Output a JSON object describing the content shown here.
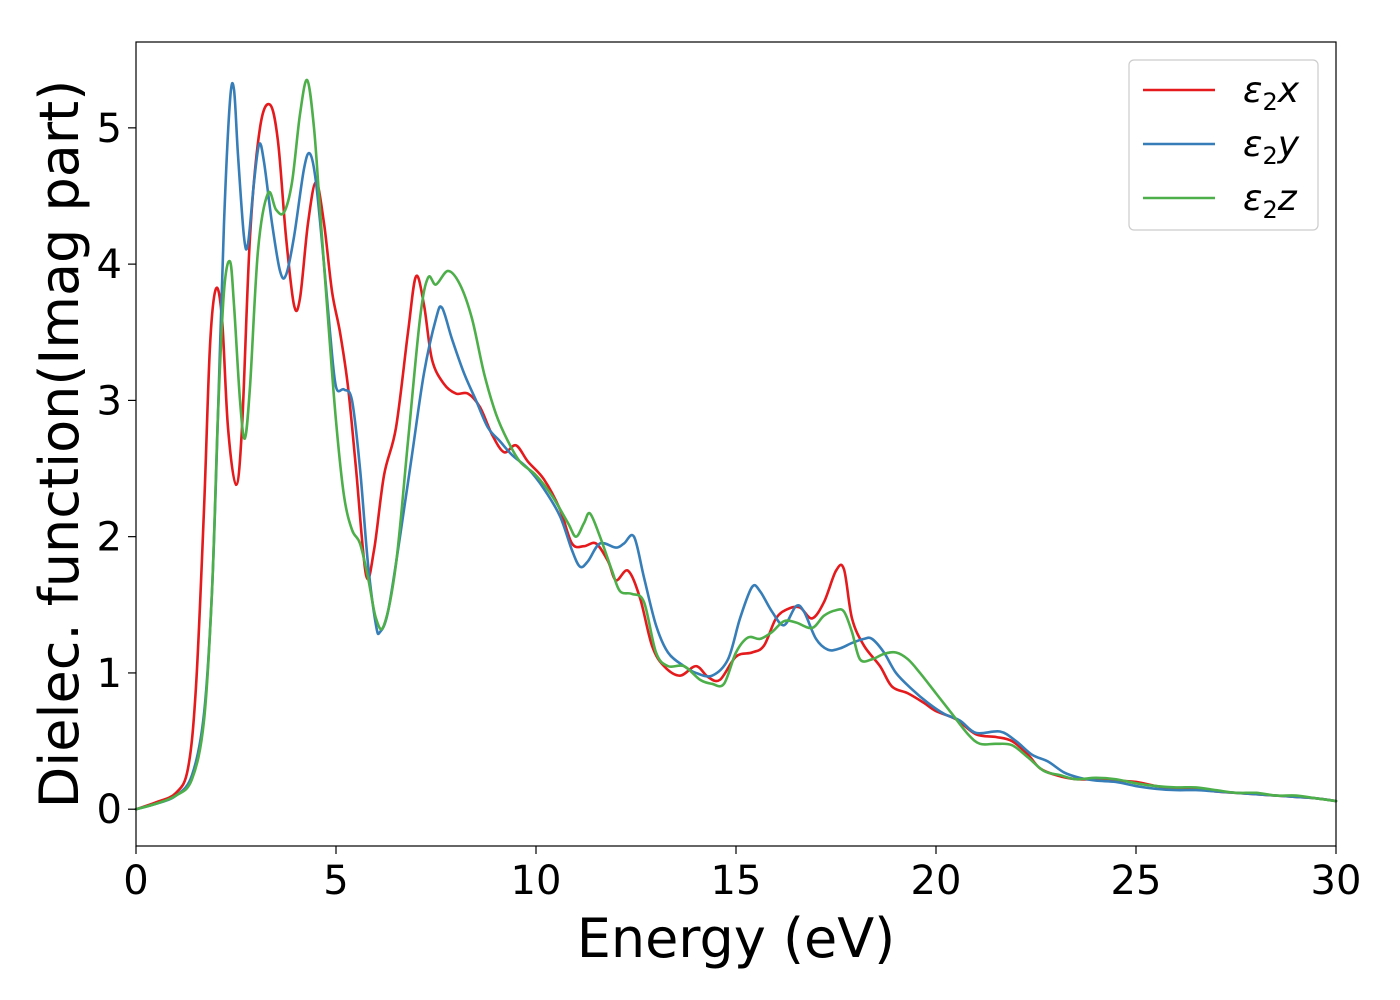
{
  "chart_data": {
    "type": "line",
    "xlabel": "Energy (eV)",
    "ylabel": "Dielec. function(Imag part)",
    "xlim": [
      0,
      30
    ],
    "ylim": [
      -0.27,
      5.63
    ],
    "xticks": [
      0,
      5,
      10,
      15,
      20,
      25,
      30
    ],
    "yticks": [
      0,
      1,
      2,
      3,
      4,
      5
    ],
    "grid": false,
    "legend_position": "top-right",
    "series": [
      {
        "name": "ε2x",
        "legend": {
          "sym": "ε",
          "sub": "2",
          "var": "x"
        },
        "color": "#e41a1c",
        "points": [
          [
            0,
            0
          ],
          [
            0.5,
            0.05
          ],
          [
            1,
            0.12
          ],
          [
            1.3,
            0.3
          ],
          [
            1.5,
            0.9
          ],
          [
            1.7,
            2.2
          ],
          [
            1.85,
            3.4
          ],
          [
            2.0,
            3.82
          ],
          [
            2.15,
            3.6
          ],
          [
            2.3,
            2.8
          ],
          [
            2.5,
            2.38
          ],
          [
            2.65,
            2.8
          ],
          [
            2.85,
            4.2
          ],
          [
            3.1,
            5.0
          ],
          [
            3.35,
            5.17
          ],
          [
            3.55,
            4.9
          ],
          [
            3.75,
            4.2
          ],
          [
            3.95,
            3.7
          ],
          [
            4.1,
            3.75
          ],
          [
            4.3,
            4.3
          ],
          [
            4.5,
            4.6
          ],
          [
            4.7,
            4.3
          ],
          [
            4.9,
            3.8
          ],
          [
            5.1,
            3.5
          ],
          [
            5.3,
            3.1
          ],
          [
            5.5,
            2.5
          ],
          [
            5.75,
            1.72
          ],
          [
            5.95,
            1.9
          ],
          [
            6.2,
            2.45
          ],
          [
            6.5,
            2.8
          ],
          [
            6.8,
            3.5
          ],
          [
            7.0,
            3.91
          ],
          [
            7.2,
            3.7
          ],
          [
            7.4,
            3.3
          ],
          [
            7.7,
            3.12
          ],
          [
            8.0,
            3.05
          ],
          [
            8.3,
            3.05
          ],
          [
            8.6,
            2.95
          ],
          [
            8.9,
            2.75
          ],
          [
            9.2,
            2.62
          ],
          [
            9.5,
            2.67
          ],
          [
            9.8,
            2.55
          ],
          [
            10.2,
            2.42
          ],
          [
            10.6,
            2.2
          ],
          [
            10.9,
            1.95
          ],
          [
            11.2,
            1.93
          ],
          [
            11.5,
            1.95
          ],
          [
            11.8,
            1.82
          ],
          [
            12.0,
            1.68
          ],
          [
            12.3,
            1.75
          ],
          [
            12.6,
            1.55
          ],
          [
            12.9,
            1.2
          ],
          [
            13.2,
            1.05
          ],
          [
            13.6,
            0.98
          ],
          [
            14.0,
            1.05
          ],
          [
            14.3,
            0.97
          ],
          [
            14.6,
            0.95
          ],
          [
            15.0,
            1.12
          ],
          [
            15.4,
            1.15
          ],
          [
            15.7,
            1.2
          ],
          [
            16.0,
            1.4
          ],
          [
            16.3,
            1.47
          ],
          [
            16.6,
            1.48
          ],
          [
            16.9,
            1.4
          ],
          [
            17.2,
            1.52
          ],
          [
            17.5,
            1.75
          ],
          [
            17.7,
            1.76
          ],
          [
            17.9,
            1.4
          ],
          [
            18.2,
            1.2
          ],
          [
            18.6,
            1.05
          ],
          [
            18.9,
            0.9
          ],
          [
            19.3,
            0.85
          ],
          [
            19.7,
            0.78
          ],
          [
            20.0,
            0.72
          ],
          [
            20.5,
            0.66
          ],
          [
            21.0,
            0.55
          ],
          [
            21.5,
            0.53
          ],
          [
            21.9,
            0.5
          ],
          [
            22.3,
            0.4
          ],
          [
            22.6,
            0.3
          ],
          [
            23.0,
            0.25
          ],
          [
            23.5,
            0.22
          ],
          [
            24.0,
            0.22
          ],
          [
            24.5,
            0.21
          ],
          [
            25.0,
            0.2
          ],
          [
            25.5,
            0.17
          ],
          [
            26.0,
            0.15
          ],
          [
            26.5,
            0.15
          ],
          [
            27.0,
            0.13
          ],
          [
            27.5,
            0.12
          ],
          [
            28.0,
            0.11
          ],
          [
            28.5,
            0.1
          ],
          [
            29.0,
            0.09
          ],
          [
            29.5,
            0.08
          ],
          [
            30,
            0.06
          ]
        ]
      },
      {
        "name": "ε2y",
        "legend": {
          "sym": "ε",
          "sub": "2",
          "var": "y"
        },
        "color": "#377eb8",
        "points": [
          [
            0,
            0
          ],
          [
            0.5,
            0.04
          ],
          [
            1,
            0.1
          ],
          [
            1.4,
            0.25
          ],
          [
            1.7,
            0.7
          ],
          [
            1.9,
            1.6
          ],
          [
            2.05,
            2.9
          ],
          [
            2.2,
            4.3
          ],
          [
            2.35,
            5.2
          ],
          [
            2.45,
            5.28
          ],
          [
            2.55,
            4.8
          ],
          [
            2.7,
            4.2
          ],
          [
            2.8,
            4.15
          ],
          [
            2.95,
            4.6
          ],
          [
            3.08,
            4.88
          ],
          [
            3.2,
            4.75
          ],
          [
            3.4,
            4.3
          ],
          [
            3.6,
            3.95
          ],
          [
            3.75,
            3.92
          ],
          [
            3.95,
            4.2
          ],
          [
            4.2,
            4.7
          ],
          [
            4.35,
            4.81
          ],
          [
            4.5,
            4.6
          ],
          [
            4.7,
            4.0
          ],
          [
            4.85,
            3.5
          ],
          [
            5.0,
            3.1
          ],
          [
            5.2,
            3.08
          ],
          [
            5.4,
            3.0
          ],
          [
            5.6,
            2.5
          ],
          [
            5.8,
            1.8
          ],
          [
            6.0,
            1.35
          ],
          [
            6.1,
            1.3
          ],
          [
            6.3,
            1.45
          ],
          [
            6.6,
            2.0
          ],
          [
            6.9,
            2.6
          ],
          [
            7.2,
            3.2
          ],
          [
            7.5,
            3.6
          ],
          [
            7.65,
            3.68
          ],
          [
            7.9,
            3.45
          ],
          [
            8.2,
            3.2
          ],
          [
            8.5,
            3.0
          ],
          [
            8.8,
            2.8
          ],
          [
            9.1,
            2.7
          ],
          [
            9.4,
            2.6
          ],
          [
            9.8,
            2.5
          ],
          [
            10.2,
            2.35
          ],
          [
            10.6,
            2.15
          ],
          [
            10.9,
            1.9
          ],
          [
            11.1,
            1.78
          ],
          [
            11.3,
            1.82
          ],
          [
            11.6,
            1.95
          ],
          [
            12.0,
            1.92
          ],
          [
            12.2,
            1.95
          ],
          [
            12.45,
            2.0
          ],
          [
            12.7,
            1.7
          ],
          [
            13.0,
            1.35
          ],
          [
            13.3,
            1.15
          ],
          [
            13.7,
            1.05
          ],
          [
            14.0,
            1.0
          ],
          [
            14.4,
            0.98
          ],
          [
            14.8,
            1.1
          ],
          [
            15.1,
            1.4
          ],
          [
            15.4,
            1.63
          ],
          [
            15.6,
            1.6
          ],
          [
            15.9,
            1.45
          ],
          [
            16.2,
            1.35
          ],
          [
            16.5,
            1.49
          ],
          [
            16.7,
            1.45
          ],
          [
            17.0,
            1.25
          ],
          [
            17.3,
            1.17
          ],
          [
            17.6,
            1.18
          ],
          [
            17.9,
            1.22
          ],
          [
            18.2,
            1.25
          ],
          [
            18.4,
            1.25
          ],
          [
            18.7,
            1.15
          ],
          [
            19.0,
            1.0
          ],
          [
            19.4,
            0.88
          ],
          [
            19.8,
            0.78
          ],
          [
            20.2,
            0.7
          ],
          [
            20.6,
            0.65
          ],
          [
            21.0,
            0.56
          ],
          [
            21.6,
            0.57
          ],
          [
            22.0,
            0.5
          ],
          [
            22.4,
            0.4
          ],
          [
            22.8,
            0.35
          ],
          [
            23.2,
            0.27
          ],
          [
            23.6,
            0.23
          ],
          [
            24.0,
            0.21
          ],
          [
            24.5,
            0.2
          ],
          [
            25.0,
            0.17
          ],
          [
            25.5,
            0.15
          ],
          [
            26.0,
            0.14
          ],
          [
            26.5,
            0.14
          ],
          [
            27.0,
            0.13
          ],
          [
            27.5,
            0.12
          ],
          [
            28.0,
            0.11
          ],
          [
            28.5,
            0.1
          ],
          [
            29.0,
            0.09
          ],
          [
            29.5,
            0.08
          ],
          [
            30,
            0.06
          ]
        ]
      },
      {
        "name": "ε2z",
        "legend": {
          "sym": "ε",
          "sub": "2",
          "var": "z"
        },
        "color": "#4daf4a",
        "points": [
          [
            0,
            0
          ],
          [
            0.5,
            0.04
          ],
          [
            1,
            0.1
          ],
          [
            1.4,
            0.22
          ],
          [
            1.7,
            0.65
          ],
          [
            1.9,
            1.6
          ],
          [
            2.05,
            2.9
          ],
          [
            2.2,
            3.8
          ],
          [
            2.35,
            4.02
          ],
          [
            2.45,
            3.7
          ],
          [
            2.6,
            3.0
          ],
          [
            2.72,
            2.72
          ],
          [
            2.85,
            3.1
          ],
          [
            3.05,
            4.1
          ],
          [
            3.3,
            4.52
          ],
          [
            3.5,
            4.4
          ],
          [
            3.7,
            4.38
          ],
          [
            3.9,
            4.6
          ],
          [
            4.1,
            5.1
          ],
          [
            4.28,
            5.35
          ],
          [
            4.45,
            5.0
          ],
          [
            4.6,
            4.4
          ],
          [
            4.8,
            3.6
          ],
          [
            5.0,
            2.85
          ],
          [
            5.2,
            2.3
          ],
          [
            5.4,
            2.05
          ],
          [
            5.6,
            1.95
          ],
          [
            5.8,
            1.7
          ],
          [
            6.0,
            1.4
          ],
          [
            6.2,
            1.35
          ],
          [
            6.5,
            1.8
          ],
          [
            6.8,
            2.7
          ],
          [
            7.1,
            3.6
          ],
          [
            7.3,
            3.9
          ],
          [
            7.5,
            3.85
          ],
          [
            7.8,
            3.95
          ],
          [
            8.1,
            3.85
          ],
          [
            8.4,
            3.6
          ],
          [
            8.7,
            3.2
          ],
          [
            9.0,
            2.9
          ],
          [
            9.3,
            2.7
          ],
          [
            9.6,
            2.55
          ],
          [
            10.0,
            2.45
          ],
          [
            10.4,
            2.3
          ],
          [
            10.8,
            2.1
          ],
          [
            11.0,
            2.0
          ],
          [
            11.2,
            2.1
          ],
          [
            11.35,
            2.17
          ],
          [
            11.6,
            2.0
          ],
          [
            11.9,
            1.75
          ],
          [
            12.1,
            1.6
          ],
          [
            12.4,
            1.58
          ],
          [
            12.7,
            1.52
          ],
          [
            13.0,
            1.15
          ],
          [
            13.3,
            1.05
          ],
          [
            13.7,
            1.05
          ],
          [
            14.1,
            0.95
          ],
          [
            14.4,
            0.92
          ],
          [
            14.7,
            0.92
          ],
          [
            15.0,
            1.15
          ],
          [
            15.3,
            1.26
          ],
          [
            15.6,
            1.25
          ],
          [
            15.9,
            1.3
          ],
          [
            16.2,
            1.38
          ],
          [
            16.5,
            1.37
          ],
          [
            16.9,
            1.33
          ],
          [
            17.2,
            1.42
          ],
          [
            17.5,
            1.46
          ],
          [
            17.7,
            1.45
          ],
          [
            17.9,
            1.3
          ],
          [
            18.1,
            1.1
          ],
          [
            18.4,
            1.1
          ],
          [
            18.7,
            1.14
          ],
          [
            19.0,
            1.15
          ],
          [
            19.3,
            1.1
          ],
          [
            19.6,
            1.0
          ],
          [
            20.0,
            0.85
          ],
          [
            20.4,
            0.7
          ],
          [
            20.8,
            0.55
          ],
          [
            21.1,
            0.48
          ],
          [
            21.5,
            0.48
          ],
          [
            21.9,
            0.47
          ],
          [
            22.3,
            0.38
          ],
          [
            22.7,
            0.28
          ],
          [
            23.1,
            0.25
          ],
          [
            23.5,
            0.22
          ],
          [
            24.0,
            0.23
          ],
          [
            24.5,
            0.22
          ],
          [
            25.0,
            0.19
          ],
          [
            25.5,
            0.17
          ],
          [
            26.0,
            0.16
          ],
          [
            26.5,
            0.16
          ],
          [
            27.0,
            0.14
          ],
          [
            27.5,
            0.12
          ],
          [
            28.0,
            0.12
          ],
          [
            28.5,
            0.1
          ],
          [
            29.0,
            0.1
          ],
          [
            29.5,
            0.08
          ],
          [
            30,
            0.06
          ]
        ]
      }
    ]
  }
}
